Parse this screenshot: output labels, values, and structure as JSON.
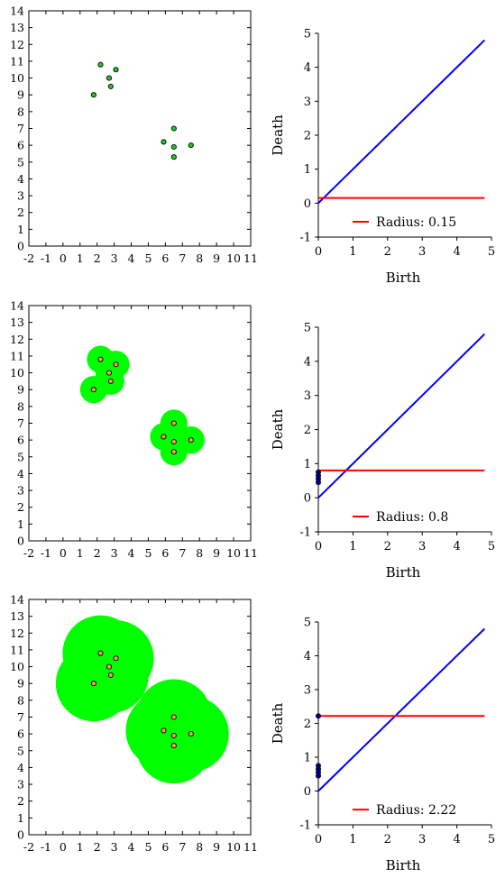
{
  "colors": {
    "point_fill": "#22cc22",
    "ball_fill": "#00ff00",
    "point_fill_inside": "#ff9966",
    "diagonal": "#0000ff",
    "radius_line": "#ff0000",
    "diagram_point": "#000080",
    "axes": "#000000"
  },
  "chart_data": [
    {
      "type": "scatter",
      "title": "",
      "xlabel": "",
      "ylabel": "",
      "xlim": [
        -2,
        11
      ],
      "ylim": [
        0,
        14
      ],
      "xticks": [
        "-2",
        "-1",
        "0",
        "1",
        "2",
        "3",
        "4",
        "5",
        "6",
        "7",
        "8",
        "9",
        "10",
        "11"
      ],
      "yticks": [
        "0",
        "1",
        "2",
        "3",
        "4",
        "5",
        "6",
        "7",
        "8",
        "9",
        "10",
        "11",
        "12",
        "13",
        "14"
      ],
      "points": [
        [
          2.2,
          10.8
        ],
        [
          3.1,
          10.5
        ],
        [
          2.7,
          10.0
        ],
        [
          2.8,
          9.5
        ],
        [
          1.8,
          9.0
        ],
        [
          6.5,
          7.0
        ],
        [
          5.9,
          6.2
        ],
        [
          7.5,
          6.0
        ],
        [
          6.5,
          5.9
        ],
        [
          6.5,
          5.3
        ]
      ],
      "ball_radius": 0.15
    },
    {
      "type": "line",
      "title": "",
      "xlabel": "Birth",
      "ylabel": "Death",
      "xlim": [
        0,
        5
      ],
      "ylim": [
        -1,
        5
      ],
      "xticks": [
        "0",
        "1",
        "2",
        "3",
        "4",
        "5"
      ],
      "yticks": [
        "-1",
        "0",
        "1",
        "2",
        "3",
        "4",
        "5"
      ],
      "diagonal": [
        [
          0,
          0
        ],
        [
          4.8,
          4.8
        ]
      ],
      "radius": 0.15,
      "legend": "Radius: 0.15",
      "legend_position": "bottom-right",
      "diagram_points": []
    },
    {
      "type": "scatter",
      "title": "",
      "xlabel": "",
      "ylabel": "",
      "xlim": [
        -2,
        11
      ],
      "ylim": [
        0,
        14
      ],
      "xticks": [
        "-2",
        "-1",
        "0",
        "1",
        "2",
        "3",
        "4",
        "5",
        "6",
        "7",
        "8",
        "9",
        "10",
        "11"
      ],
      "yticks": [
        "0",
        "1",
        "2",
        "3",
        "4",
        "5",
        "6",
        "7",
        "8",
        "9",
        "10",
        "11",
        "12",
        "13",
        "14"
      ],
      "points": [
        [
          2.2,
          10.8
        ],
        [
          3.1,
          10.5
        ],
        [
          2.7,
          10.0
        ],
        [
          2.8,
          9.5
        ],
        [
          1.8,
          9.0
        ],
        [
          6.5,
          7.0
        ],
        [
          5.9,
          6.2
        ],
        [
          7.5,
          6.0
        ],
        [
          6.5,
          5.9
        ],
        [
          6.5,
          5.3
        ]
      ],
      "ball_radius": 0.8
    },
    {
      "type": "line",
      "title": "",
      "xlabel": "Birth",
      "ylabel": "Death",
      "xlim": [
        0,
        5
      ],
      "ylim": [
        -1,
        5
      ],
      "xticks": [
        "0",
        "1",
        "2",
        "3",
        "4",
        "5"
      ],
      "yticks": [
        "-1",
        "0",
        "1",
        "2",
        "3",
        "4",
        "5"
      ],
      "diagonal": [
        [
          0,
          0
        ],
        [
          4.8,
          4.8
        ]
      ],
      "radius": 0.8,
      "legend": "Radius: 0.8",
      "legend_position": "bottom-right",
      "diagram_points": [
        [
          0,
          0.45
        ],
        [
          0,
          0.55
        ],
        [
          0,
          0.65
        ],
        [
          0,
          0.75
        ]
      ]
    },
    {
      "type": "scatter",
      "title": "",
      "xlabel": "",
      "ylabel": "",
      "xlim": [
        -2,
        11
      ],
      "ylim": [
        0,
        14
      ],
      "xticks": [
        "-2",
        "-1",
        "0",
        "1",
        "2",
        "3",
        "4",
        "5",
        "6",
        "7",
        "8",
        "9",
        "10",
        "11"
      ],
      "yticks": [
        "0",
        "1",
        "2",
        "3",
        "4",
        "5",
        "6",
        "7",
        "8",
        "9",
        "10",
        "11",
        "12",
        "13",
        "14"
      ],
      "points": [
        [
          2.2,
          10.8
        ],
        [
          3.1,
          10.5
        ],
        [
          2.7,
          10.0
        ],
        [
          2.8,
          9.5
        ],
        [
          1.8,
          9.0
        ],
        [
          6.5,
          7.0
        ],
        [
          5.9,
          6.2
        ],
        [
          7.5,
          6.0
        ],
        [
          6.5,
          5.9
        ],
        [
          6.5,
          5.3
        ]
      ],
      "ball_radius": 2.22
    },
    {
      "type": "line",
      "title": "",
      "xlabel": "Birth",
      "ylabel": "Death",
      "xlim": [
        0,
        5
      ],
      "ylim": [
        -1,
        5
      ],
      "xticks": [
        "0",
        "1",
        "2",
        "3",
        "4",
        "5"
      ],
      "yticks": [
        "-1",
        "0",
        "1",
        "2",
        "3",
        "4",
        "5"
      ],
      "diagonal": [
        [
          0,
          0
        ],
        [
          4.8,
          4.8
        ]
      ],
      "radius": 2.22,
      "legend": "Radius: 2.22",
      "legend_position": "bottom-right",
      "diagram_points": [
        [
          0,
          0.45
        ],
        [
          0,
          0.55
        ],
        [
          0,
          0.65
        ],
        [
          0,
          0.75
        ],
        [
          0,
          2.22
        ]
      ]
    }
  ]
}
